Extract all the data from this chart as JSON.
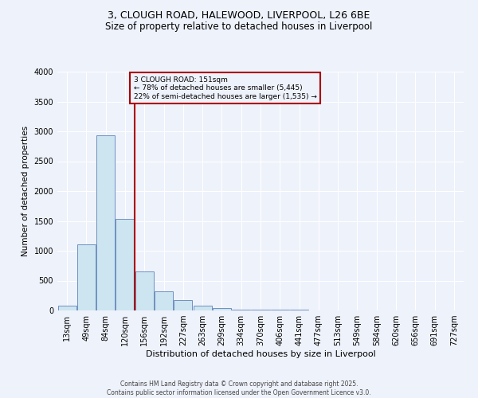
{
  "title_line1": "3, CLOUGH ROAD, HALEWOOD, LIVERPOOL, L26 6BE",
  "title_line2": "Size of property relative to detached houses in Liverpool",
  "xlabel": "Distribution of detached houses by size in Liverpool",
  "ylabel": "Number of detached properties",
  "footer_line1": "Contains HM Land Registry data © Crown copyright and database right 2025.",
  "footer_line2": "Contains public sector information licensed under the Open Government Licence v3.0.",
  "categories": [
    "13sqm",
    "49sqm",
    "84sqm",
    "120sqm",
    "156sqm",
    "192sqm",
    "227sqm",
    "263sqm",
    "299sqm",
    "334sqm",
    "370sqm",
    "406sqm",
    "441sqm",
    "477sqm",
    "513sqm",
    "549sqm",
    "584sqm",
    "620sqm",
    "656sqm",
    "691sqm",
    "727sqm"
  ],
  "values": [
    80,
    1110,
    2940,
    1530,
    650,
    320,
    175,
    80,
    40,
    20,
    15,
    10,
    7,
    5,
    4,
    3,
    2,
    2,
    1,
    1,
    1
  ],
  "bar_color": "#cce5f0",
  "bar_edge_color": "#7090c0",
  "ylim": [
    0,
    4000
  ],
  "yticks": [
    0,
    500,
    1000,
    1500,
    2000,
    2500,
    3000,
    3500,
    4000
  ],
  "vline_x": 3.5,
  "vline_color": "#aa0000",
  "annotation_title": "3 CLOUGH ROAD: 151sqm",
  "annotation_line1": "← 78% of detached houses are smaller (5,445)",
  "annotation_line2": "22% of semi-detached houses are larger (1,535) →",
  "annotation_box_edge_color": "#aa0000",
  "background_color": "#eef2fb",
  "grid_color": "#ffffff",
  "title1_fontsize": 9,
  "title2_fontsize": 8.5,
  "ylabel_fontsize": 7.5,
  "xlabel_fontsize": 8,
  "tick_fontsize": 7,
  "footer_fontsize": 5.5
}
